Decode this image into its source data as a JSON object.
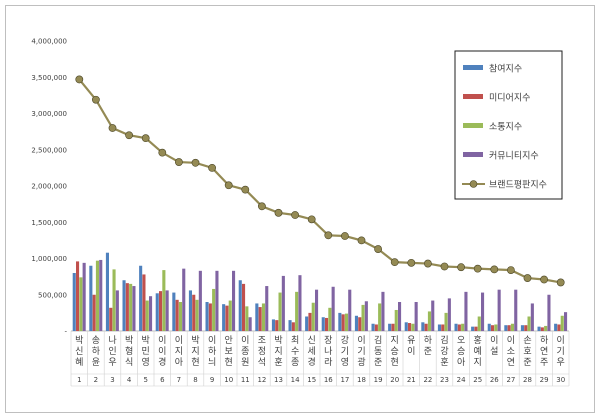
{
  "chart_data": {
    "type": "bar",
    "title": "",
    "xlabel": "",
    "ylabel": "",
    "ylim": [
      0,
      4000000
    ],
    "yticks": [
      0,
      500000,
      1000000,
      1500000,
      2000000,
      2500000,
      3000000,
      3500000,
      4000000
    ],
    "ytick_labels": [
      "-",
      "500,000",
      "1,000,000",
      "1,500,000",
      "2,000,000",
      "2,500,000",
      "3,000,000",
      "3,500,000",
      "4,000,000"
    ],
    "grid": false,
    "legend_position": "top-right",
    "ranks": [
      "1",
      "2",
      "3",
      "4",
      "5",
      "6",
      "7",
      "8",
      "9",
      "10",
      "11",
      "12",
      "13",
      "14",
      "15",
      "16",
      "17",
      "18",
      "19",
      "20",
      "21",
      "22",
      "23",
      "24",
      "25",
      "26",
      "27",
      "28",
      "29",
      "30"
    ],
    "categories": [
      "박신혜",
      "송하윤",
      "나인우",
      "박형식",
      "박민영",
      "이이경",
      "이지아",
      "박지현",
      "이하늬",
      "안보현",
      "이종원",
      "조정석",
      "박지훈",
      "최수종",
      "신세경",
      "장나라",
      "강기영",
      "이기광",
      "김동준",
      "지승현",
      "유이",
      "하준",
      "김강훈",
      "오승아",
      "홍예지",
      "이설",
      "이소연",
      "손호준",
      "하연주",
      "이기우"
    ],
    "series": [
      {
        "name": "참여지수",
        "kind": "bar",
        "color": "#4f81bd",
        "values": [
          800000,
          900000,
          1080000,
          700000,
          900000,
          520000,
          530000,
          560000,
          400000,
          370000,
          700000,
          380000,
          160000,
          150000,
          200000,
          190000,
          250000,
          210000,
          100000,
          100000,
          120000,
          120000,
          90000,
          100000,
          60000,
          100000,
          80000,
          80000,
          60000,
          100000
        ]
      },
      {
        "name": "미디어지수",
        "kind": "bar",
        "color": "#c0504d",
        "values": [
          960000,
          500000,
          320000,
          660000,
          780000,
          550000,
          430000,
          500000,
          380000,
          350000,
          650000,
          330000,
          150000,
          120000,
          250000,
          180000,
          230000,
          190000,
          90000,
          100000,
          110000,
          100000,
          90000,
          90000,
          60000,
          80000,
          80000,
          80000,
          50000,
          90000
        ]
      },
      {
        "name": "소통지수",
        "kind": "bar",
        "color": "#9bbb59",
        "values": [
          740000,
          970000,
          850000,
          650000,
          420000,
          840000,
          400000,
          430000,
          580000,
          420000,
          340000,
          380000,
          530000,
          540000,
          390000,
          320000,
          240000,
          360000,
          380000,
          290000,
          100000,
          270000,
          250000,
          100000,
          200000,
          90000,
          100000,
          200000,
          70000,
          210000
        ]
      },
      {
        "name": "커뮤니티지수",
        "kind": "bar",
        "color": "#8064a2",
        "values": [
          940000,
          980000,
          560000,
          620000,
          480000,
          560000,
          860000,
          830000,
          830000,
          830000,
          190000,
          620000,
          760000,
          770000,
          570000,
          610000,
          570000,
          410000,
          540000,
          400000,
          400000,
          420000,
          450000,
          540000,
          530000,
          570000,
          570000,
          380000,
          500000,
          260000
        ]
      },
      {
        "name": "브랜드평판지수",
        "kind": "line",
        "color": "#948a54",
        "values": [
          3470000,
          3190000,
          2800000,
          2700000,
          2660000,
          2460000,
          2330000,
          2320000,
          2250000,
          2010000,
          1950000,
          1720000,
          1630000,
          1600000,
          1540000,
          1320000,
          1310000,
          1250000,
          1130000,
          950000,
          940000,
          930000,
          890000,
          880000,
          860000,
          850000,
          840000,
          730000,
          710000,
          670000
        ]
      }
    ]
  }
}
